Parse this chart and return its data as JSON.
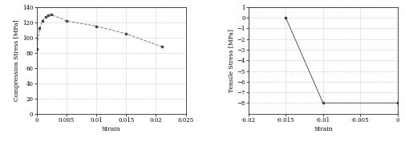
{
  "left": {
    "xlabel": "Strain",
    "ylabel": "Compression Stress [MPa]",
    "xlim": [
      0,
      0.025
    ],
    "ylim": [
      0,
      140
    ],
    "xticks": [
      0,
      0.005,
      0.01,
      0.015,
      0.02,
      0.025
    ],
    "yticks": [
      0,
      20,
      40,
      60,
      80,
      100,
      120,
      140
    ],
    "x_data": [
      0,
      0.0005,
      0.001,
      0.0015,
      0.002,
      0.0025,
      0.005,
      0.01,
      0.015,
      0.021
    ],
    "y_data": [
      85,
      112,
      122,
      127,
      129,
      130,
      122,
      115,
      105,
      88
    ],
    "line_color": "#777777",
    "line_style": "--",
    "marker": "s",
    "marker_size": 1.5,
    "marker_color": "#444444"
  },
  "right": {
    "xlabel": "Strain",
    "ylabel": "Tensile Stress [MPa]",
    "xlim": [
      -0.02,
      0.0
    ],
    "ylim": [
      -9,
      1
    ],
    "xticks": [
      -0.02,
      -0.015,
      -0.01,
      -0.005,
      0
    ],
    "yticks": [
      -8,
      -7,
      -6,
      -5,
      -4,
      -3,
      -2,
      -1,
      0,
      1
    ],
    "x_data": [
      -0.015,
      -0.01,
      0.0
    ],
    "y_data": [
      0,
      -8,
      -8
    ],
    "line_color": "#555555",
    "line_style": "-",
    "marker": "s",
    "marker_size": 1.5,
    "marker_color": "#444444"
  },
  "bg_color": "#ffffff",
  "grid_color": "#aaaaaa",
  "grid_style": ":",
  "tick_label_fontsize": 5.0,
  "axis_label_fontsize": 5.5,
  "font_family": "DejaVu Serif"
}
